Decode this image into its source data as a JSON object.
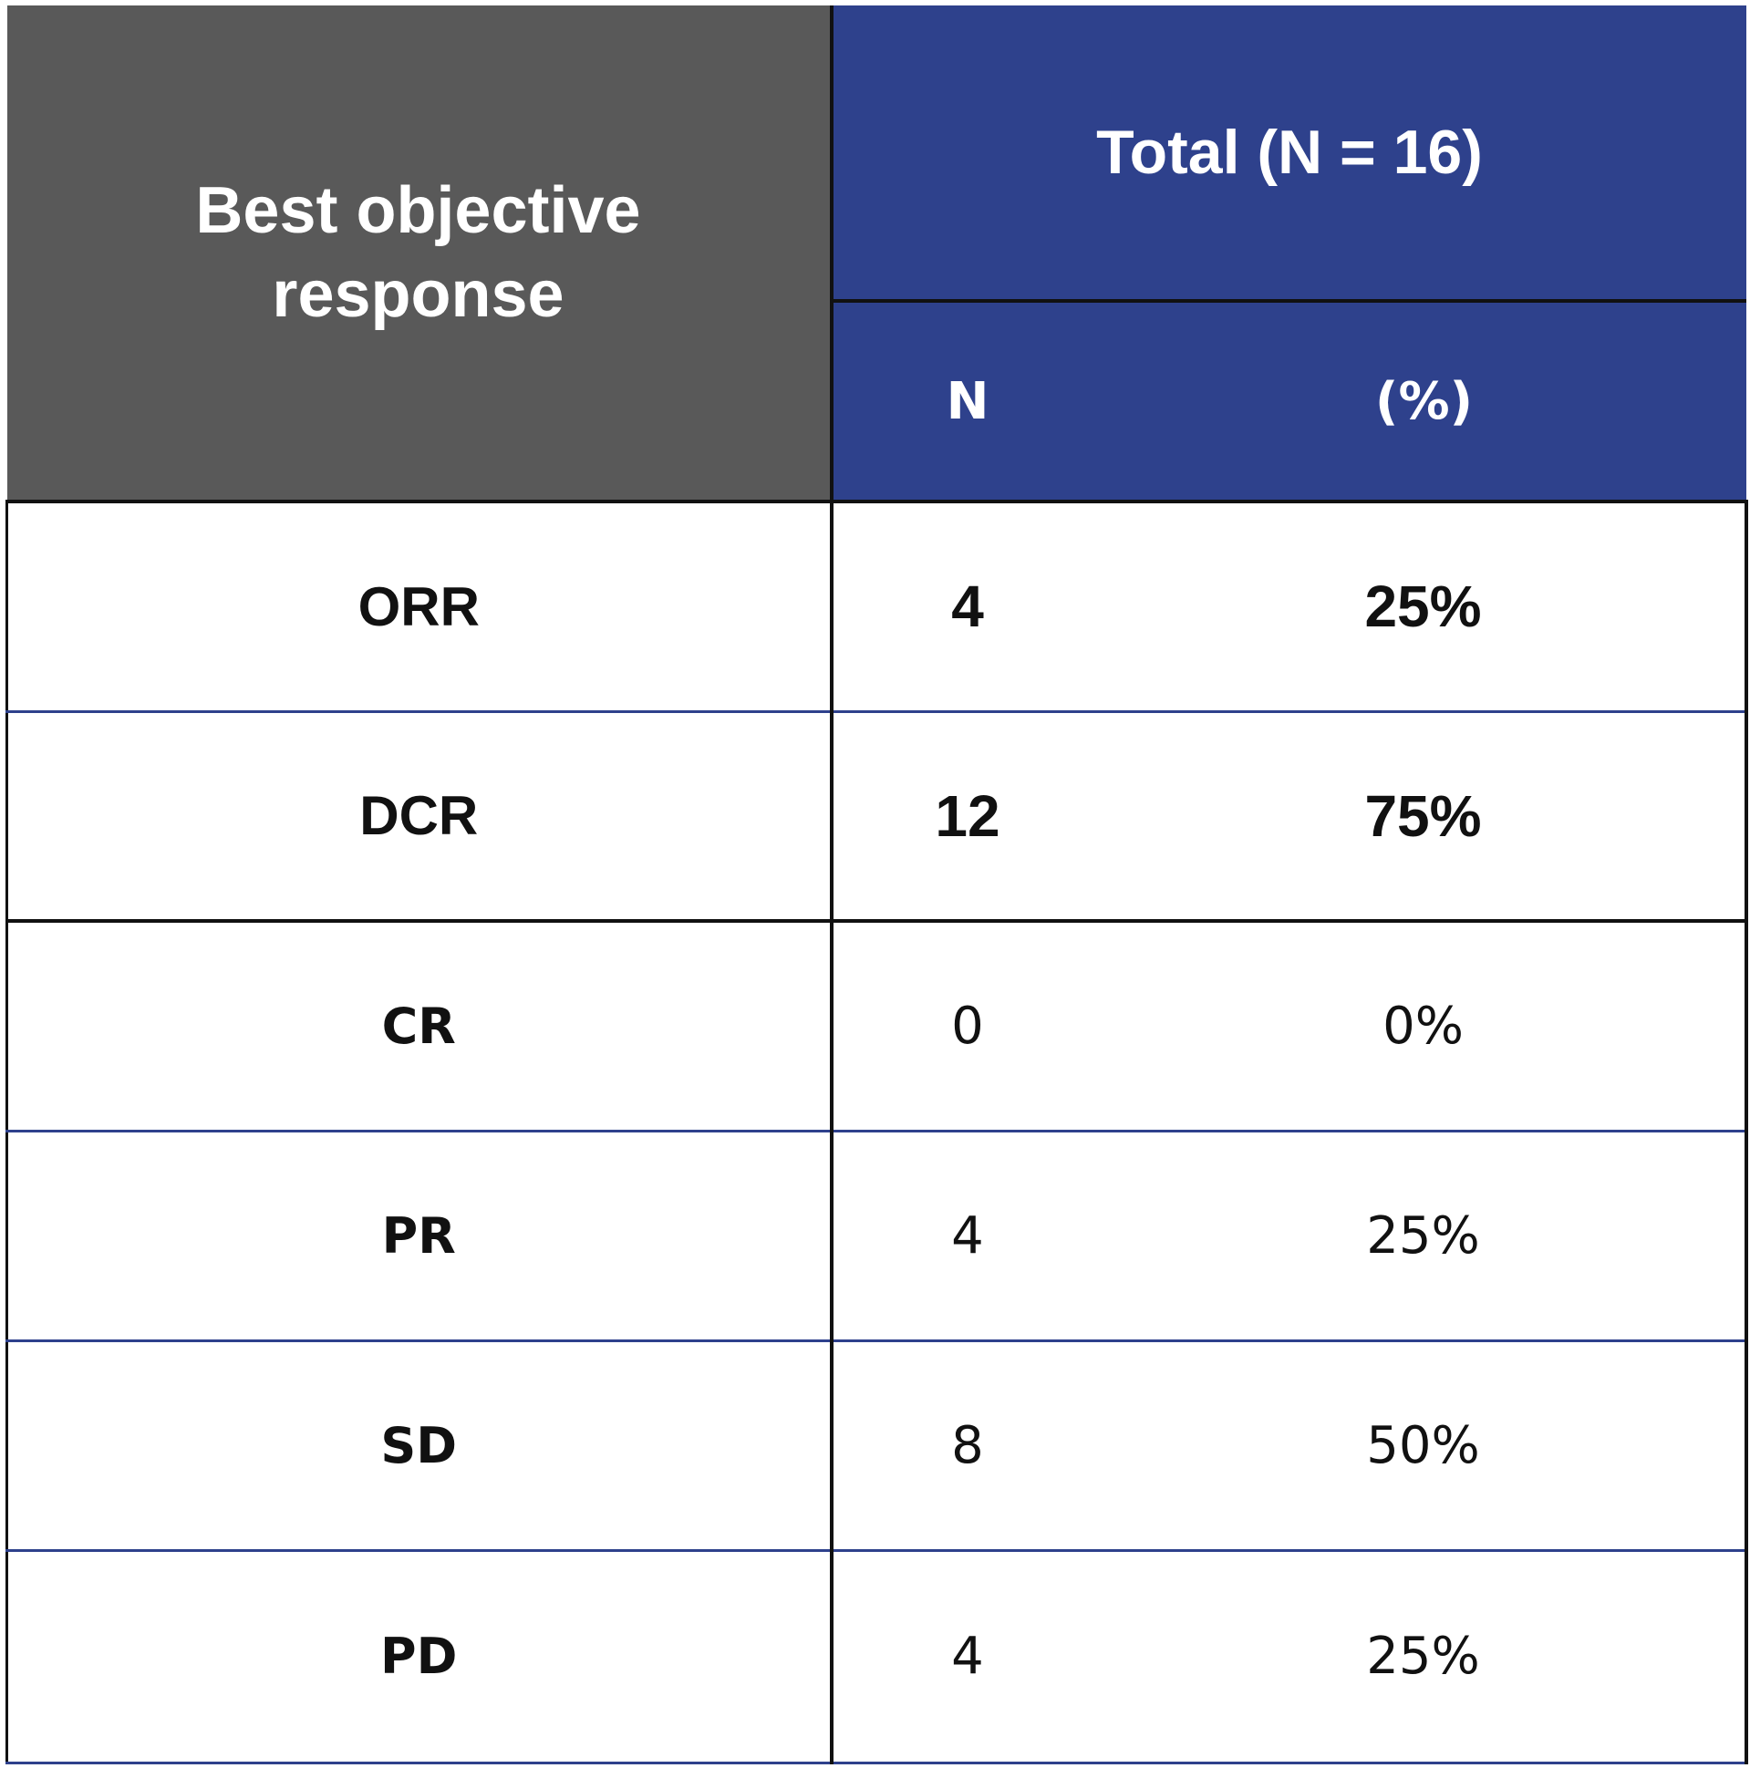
{
  "header": {
    "row_header_line1": "Best objective",
    "row_header_line2": "response",
    "group_label": "Total (N = 16)",
    "col_n": "N",
    "col_pct": "(%)"
  },
  "rows": [
    {
      "label": "ORR",
      "n": "4",
      "pct": "25%"
    },
    {
      "label": "DCR",
      "n": "12",
      "pct": "75%"
    },
    {
      "label": "CR",
      "n": "0",
      "pct": "0%"
    },
    {
      "label": "PR",
      "n": "4",
      "pct": "25%"
    },
    {
      "label": "SD",
      "n": "8",
      "pct": "50%"
    },
    {
      "label": "PD",
      "n": "4",
      "pct": "25%"
    }
  ],
  "colors": {
    "header_gray": "#595959",
    "header_blue": "#2e418c",
    "row_divider_blue": "#2e418c",
    "border_black": "#111111"
  }
}
